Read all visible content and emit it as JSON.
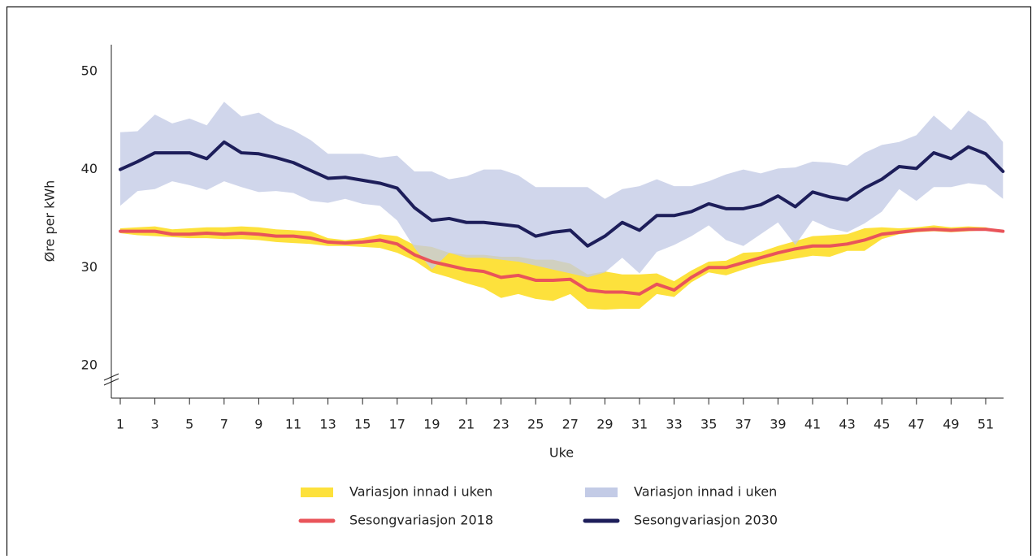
{
  "chart_data": {
    "type": "line",
    "xlabel": "Uke",
    "ylabel": "Øre per kWh",
    "x": [
      1,
      2,
      3,
      4,
      5,
      6,
      7,
      8,
      9,
      10,
      11,
      12,
      13,
      14,
      15,
      16,
      17,
      18,
      19,
      20,
      21,
      22,
      23,
      24,
      25,
      26,
      27,
      28,
      29,
      30,
      31,
      32,
      33,
      34,
      35,
      36,
      37,
      38,
      39,
      40,
      41,
      42,
      43,
      44,
      45,
      46,
      47,
      48,
      49,
      50,
      51,
      52
    ],
    "xlim": [
      0.5,
      52
    ],
    "xticks": [
      1,
      3,
      5,
      7,
      9,
      11,
      13,
      15,
      17,
      19,
      21,
      23,
      25,
      27,
      29,
      31,
      33,
      35,
      37,
      39,
      41,
      43,
      45,
      47,
      49,
      51
    ],
    "ylim": [
      16.7,
      52.7
    ],
    "yticks": [
      20,
      30,
      40,
      50
    ],
    "series": [
      {
        "name": "Variasjon innad i uken",
        "kind": "band",
        "color": "#fde13c",
        "upper": [
          34.0,
          34.1,
          34.2,
          33.9,
          34.0,
          34.1,
          34.1,
          34.2,
          34.1,
          33.9,
          33.8,
          33.7,
          33.0,
          32.8,
          33.0,
          33.4,
          33.2,
          32.3,
          32.1,
          31.5,
          31.3,
          31.3,
          31.1,
          31.1,
          30.8,
          30.8,
          30.4,
          29.3,
          29.6,
          29.3,
          29.3,
          29.4,
          28.6,
          29.7,
          30.6,
          30.7,
          31.5,
          31.6,
          32.2,
          32.7,
          33.2,
          33.3,
          33.4,
          34.0,
          34.1,
          34.0,
          34.1,
          34.3,
          34.1,
          34.2,
          34.1,
          33.7
        ],
        "lower": [
          33.5,
          33.3,
          33.2,
          33.1,
          33.0,
          33.0,
          32.9,
          32.9,
          32.8,
          32.6,
          32.5,
          32.4,
          32.2,
          32.2,
          32.1,
          32.0,
          31.5,
          30.7,
          29.5,
          29.0,
          28.4,
          27.9,
          26.9,
          27.3,
          26.8,
          26.6,
          27.3,
          25.8,
          25.7,
          25.8,
          25.8,
          27.3,
          27.0,
          28.5,
          29.5,
          29.2,
          29.8,
          30.3,
          30.6,
          30.9,
          31.2,
          31.1,
          31.7,
          31.7,
          32.9,
          33.4,
          33.6,
          33.7,
          33.6,
          33.7,
          33.8,
          33.7
        ]
      },
      {
        "name": "Variasjon innad i uken",
        "kind": "band",
        "color": "#c3cbe6",
        "upper": [
          43.8,
          43.9,
          45.6,
          44.7,
          45.2,
          44.5,
          46.9,
          45.4,
          45.8,
          44.7,
          44.0,
          43.0,
          41.6,
          41.6,
          41.6,
          41.2,
          41.4,
          39.8,
          39.8,
          39.0,
          39.3,
          40.0,
          40.0,
          39.4,
          38.2,
          38.2,
          38.2,
          38.2,
          37.0,
          38.0,
          38.3,
          39.0,
          38.3,
          38.3,
          38.8,
          39.5,
          40.0,
          39.6,
          40.1,
          40.2,
          40.8,
          40.7,
          40.4,
          41.7,
          42.5,
          42.8,
          43.5,
          45.5,
          44.0,
          46.0,
          44.9,
          42.8
        ],
        "lower": [
          36.3,
          37.8,
          38.0,
          38.8,
          38.4,
          37.9,
          38.8,
          38.2,
          37.7,
          37.8,
          37.6,
          36.8,
          36.6,
          37.0,
          36.5,
          36.3,
          34.8,
          32.0,
          29.8,
          31.5,
          31.0,
          31.0,
          30.8,
          30.6,
          30.2,
          29.8,
          29.4,
          29.0,
          29.5,
          31.0,
          29.4,
          31.6,
          32.3,
          33.2,
          34.3,
          32.8,
          32.2,
          33.4,
          34.6,
          32.3,
          34.8,
          34.0,
          33.6,
          34.5,
          35.7,
          38.0,
          36.8,
          38.2,
          38.2,
          38.6,
          38.4,
          37.0
        ]
      },
      {
        "name": "Sesongvariasjon 2018",
        "kind": "line",
        "color": "#e9545a",
        "values": [
          33.7,
          33.7,
          33.7,
          33.4,
          33.4,
          33.5,
          33.4,
          33.5,
          33.4,
          33.2,
          33.2,
          33.0,
          32.6,
          32.5,
          32.6,
          32.8,
          32.4,
          31.3,
          30.6,
          30.2,
          29.8,
          29.6,
          29.0,
          29.2,
          28.7,
          28.7,
          28.8,
          27.7,
          27.5,
          27.5,
          27.3,
          28.3,
          27.7,
          29.0,
          30.0,
          30.0,
          30.5,
          31.0,
          31.5,
          31.9,
          32.2,
          32.2,
          32.4,
          32.8,
          33.4,
          33.6,
          33.8,
          33.9,
          33.8,
          33.9,
          33.9,
          33.7
        ]
      },
      {
        "name": "Sesongvariasjon 2030",
        "kind": "line",
        "color": "#1d1e5a",
        "values": [
          40.0,
          40.8,
          41.7,
          41.7,
          41.7,
          41.1,
          42.8,
          41.7,
          41.6,
          41.2,
          40.7,
          39.9,
          39.1,
          39.2,
          38.9,
          38.6,
          38.1,
          36.1,
          34.8,
          35.0,
          34.6,
          34.6,
          34.4,
          34.2,
          33.2,
          33.6,
          33.8,
          32.2,
          33.2,
          34.6,
          33.8,
          35.3,
          35.3,
          35.7,
          36.5,
          36.0,
          36.0,
          36.4,
          37.3,
          36.2,
          37.7,
          37.2,
          36.9,
          38.1,
          39.0,
          40.3,
          40.1,
          41.7,
          41.1,
          42.3,
          41.6,
          39.8
        ]
      }
    ]
  }
}
